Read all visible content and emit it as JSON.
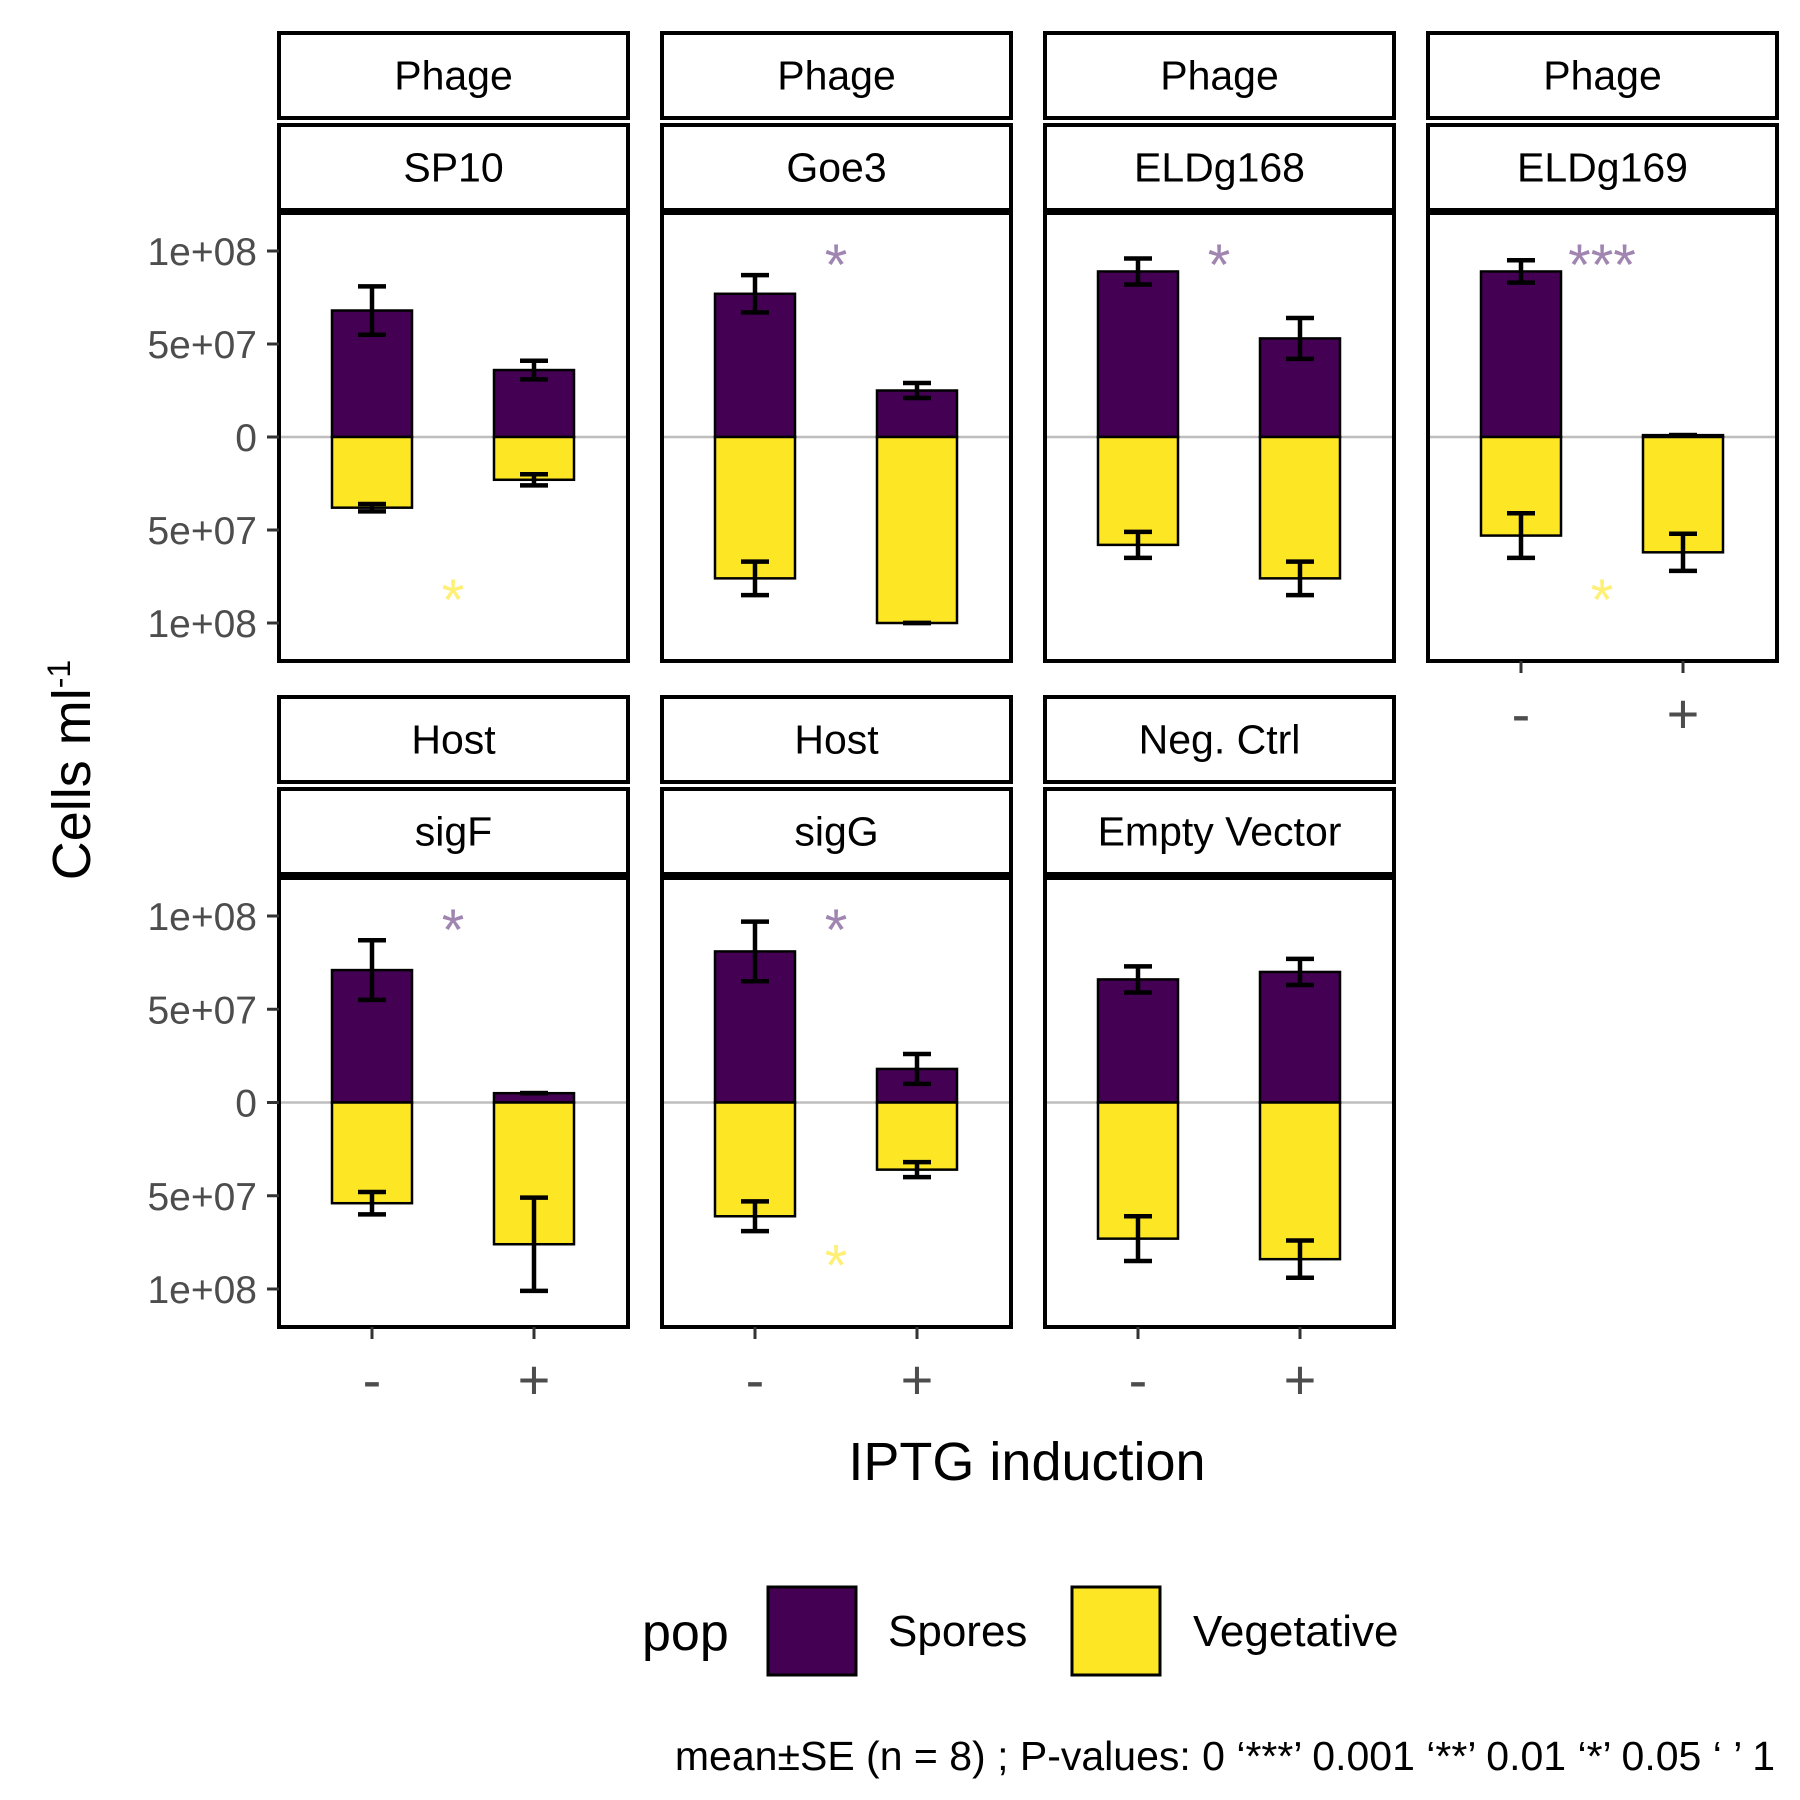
{
  "chart_data": {
    "type": "bar",
    "categories": [
      "-",
      "+"
    ],
    "xlabel": "IPTG induction",
    "ylabel": "Cells ml",
    "ylabel_superscript": "-1",
    "ylim": [
      -100000000,
      100000000
    ],
    "yticks": [
      {
        "value": 100000000,
        "label": "1e+08"
      },
      {
        "value": 50000000,
        "label": "5e+07"
      },
      {
        "value": 0,
        "label": "0"
      },
      {
        "value": -50000000,
        "label": "5e+07"
      },
      {
        "value": -100000000,
        "label": "1e+08"
      }
    ],
    "legend": {
      "title": "pop",
      "position": "bottom",
      "items": [
        {
          "name": "Spores",
          "color": "#440154"
        },
        {
          "name": "Vegetative",
          "color": "#FDE725"
        }
      ]
    },
    "significance_colors": {
      "Spores": "#9F85B0",
      "Vegetative": "#FEEF75"
    },
    "caption": "mean±SE (n = 8) ; P-values: 0 ‘***’ 0.001 ‘**’ 0.01 ‘*’ 0.05 ‘ ’ 1",
    "facets": [
      {
        "group": "Phage",
        "name": "SP10",
        "spores": [
          {
            "value": 68000000,
            "se": 13000000
          },
          {
            "value": 36000000,
            "se": 5000000
          }
        ],
        "vegetative": [
          {
            "value": 38000000,
            "se": 2000000
          },
          {
            "value": 23000000,
            "se": 3000000
          }
        ],
        "sig_spores": "",
        "sig_vegetative": "*"
      },
      {
        "group": "Phage",
        "name": "Goe3",
        "spores": [
          {
            "value": 77000000,
            "se": 10000000
          },
          {
            "value": 25000000,
            "se": 4000000
          }
        ],
        "vegetative": [
          {
            "value": 76000000,
            "se": 9000000
          },
          {
            "value": 100000000,
            "se": 0
          }
        ],
        "sig_spores": "*",
        "sig_vegetative": ""
      },
      {
        "group": "Phage",
        "name": "ELDg168",
        "spores": [
          {
            "value": 89000000,
            "se": 7000000
          },
          {
            "value": 53000000,
            "se": 11000000
          }
        ],
        "vegetative": [
          {
            "value": 58000000,
            "se": 7000000
          },
          {
            "value": 76000000,
            "se": 9000000
          }
        ],
        "sig_spores": "*",
        "sig_vegetative": ""
      },
      {
        "group": "Phage",
        "name": "ELDg169",
        "spores": [
          {
            "value": 89000000,
            "se": 6000000
          },
          {
            "value": 1000000,
            "se": 0
          }
        ],
        "vegetative": [
          {
            "value": 53000000,
            "se": 12000000
          },
          {
            "value": 62000000,
            "se": 10000000
          }
        ],
        "sig_spores": "***",
        "sig_vegetative": "*"
      },
      {
        "group": "Host",
        "name": "sigF",
        "spores": [
          {
            "value": 71000000,
            "se": 16000000
          },
          {
            "value": 5000000,
            "se": 0
          }
        ],
        "vegetative": [
          {
            "value": 54000000,
            "se": 6000000
          },
          {
            "value": 76000000,
            "se": 25000000
          }
        ],
        "sig_spores": "*",
        "sig_vegetative": ""
      },
      {
        "group": "Host",
        "name": "sigG",
        "spores": [
          {
            "value": 81000000,
            "se": 16000000
          },
          {
            "value": 18000000,
            "se": 8000000
          }
        ],
        "vegetative": [
          {
            "value": 61000000,
            "se": 8000000
          },
          {
            "value": 36000000,
            "se": 4000000
          }
        ],
        "sig_spores": "*",
        "sig_vegetative": "*"
      },
      {
        "group": "Neg. Ctrl",
        "name": "Empty Vector",
        "spores": [
          {
            "value": 66000000,
            "se": 7000000
          },
          {
            "value": 70000000,
            "se": 7000000
          }
        ],
        "vegetative": [
          {
            "value": 73000000,
            "se": 12000000
          },
          {
            "value": 84000000,
            "se": 10000000
          }
        ],
        "sig_spores": "",
        "sig_vegetative": ""
      }
    ]
  }
}
